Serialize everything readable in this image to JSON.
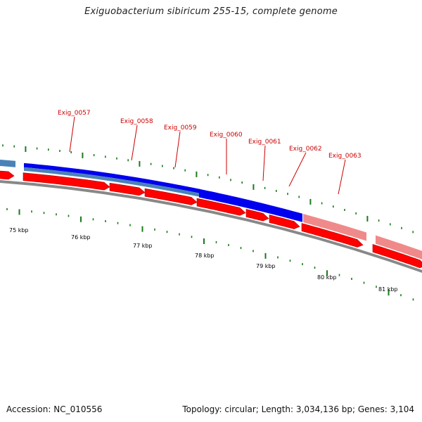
{
  "title": "Exiguobacterium sibiricum 255-15, complete genome",
  "footer": {
    "accession": "Accession: NC_010556",
    "summary": "Topology: circular; Length: 3,034,136 bp; Genes: 3,104"
  },
  "colors": {
    "cds_forward": "#ff0000",
    "match_blue": "#0000ee",
    "match_steel": "#4a82b8",
    "match_pink": "#f08a8a",
    "tick_green": "#1a7a1a",
    "backbone": "#888888",
    "label_red": "#cc0000"
  },
  "scale": {
    "unit": "kbp",
    "labels": [
      "75 kbp",
      "76 kbp",
      "77 kbp",
      "78 kbp",
      "79 kbp",
      "80 kbp",
      "81 kbp"
    ]
  },
  "genes": [
    {
      "name": "Exig_0057"
    },
    {
      "name": "Exig_0058"
    },
    {
      "name": "Exig_0059"
    },
    {
      "name": "Exig_0060"
    },
    {
      "name": "Exig_0061"
    },
    {
      "name": "Exig_0062"
    },
    {
      "name": "Exig_0063"
    }
  ]
}
